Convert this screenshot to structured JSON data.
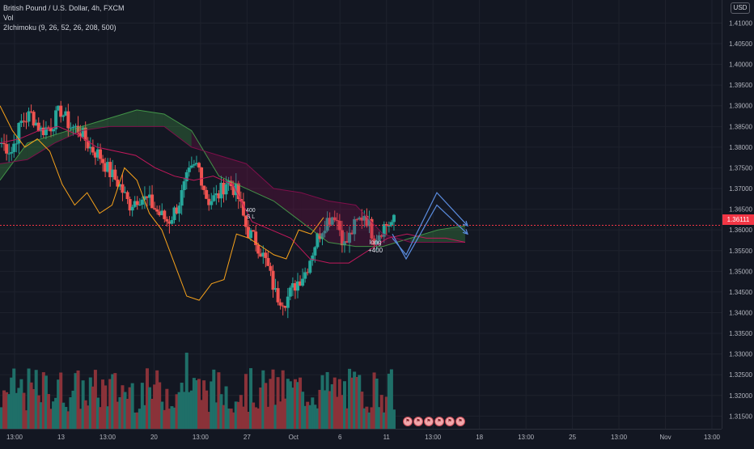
{
  "legend": {
    "symbol_line": "British Pound / U.S. Dollar, 4h, FXCM",
    "volume_line": "Vol",
    "ichimoku_line": "2Ichimoku (9, 26, 52, 26, 208, 500)"
  },
  "currency": "USD",
  "last_price": "1.36111",
  "trade_annotation": {
    "line1": "long",
    "line2": "+400"
  },
  "trade_annotation_small": {
    "line1": "400",
    "line2": "S L"
  },
  "event_icons": [
    "flag-icon",
    "flag-icon",
    "flag-icon",
    "flag-icon",
    "flag-icon",
    "flag-icon"
  ],
  "colors": {
    "up": "#26a69a",
    "down": "#ef5350",
    "vol_up": "#1f6f68",
    "vol_down": "#8a3239",
    "chikou": "#f7a21b",
    "kijun": "#c2185b",
    "cloud_bull": "#4caf50",
    "cloud_bear": "#880e4f",
    "projection": "#5b8de0",
    "last_price_line": "#f23645"
  },
  "chart_data": {
    "type": "candlestick",
    "title": "British Pound / U.S. Dollar, 4h, FXCM",
    "y_axis": {
      "range": [
        1.3135,
        1.414
      ],
      "ticks": [
        "1.41000",
        "1.40500",
        "1.40000",
        "1.39500",
        "1.39000",
        "1.38500",
        "1.38000",
        "1.37500",
        "1.37000",
        "1.36500",
        "1.36000",
        "1.35500",
        "1.35000",
        "1.34500",
        "1.34000",
        "1.33500",
        "1.33000",
        "1.32500",
        "1.32000",
        "1.31500"
      ]
    },
    "x_axis": {
      "ticks": [
        "13:00",
        "13",
        "13:00",
        "20",
        "13:00",
        "27",
        "Oct",
        "6",
        "11",
        "13:00",
        "18",
        "13:00",
        "25",
        "13:00",
        "Nov",
        "13:00"
      ]
    },
    "last_price": 1.36111,
    "close_path": [
      1.381,
      1.379,
      1.386,
      1.388,
      1.384,
      1.385,
      1.389,
      1.385,
      1.384,
      1.38,
      1.378,
      1.374,
      1.371,
      1.366,
      1.368,
      1.367,
      1.364,
      1.362,
      1.366,
      1.373,
      1.376,
      1.367,
      1.368,
      1.372,
      1.369,
      1.36,
      1.357,
      1.352,
      1.344,
      1.343,
      1.347,
      1.35,
      1.357,
      1.362,
      1.364,
      1.356,
      1.361,
      1.364,
      1.358,
      1.361,
      1.362
    ],
    "cloud": [
      {
        "a": 1.372,
        "b": 1.376
      },
      {
        "a": 1.381,
        "b": 1.377
      },
      {
        "a": 1.383,
        "b": 1.381
      },
      {
        "a": 1.385,
        "b": 1.384
      },
      {
        "a": 1.387,
        "b": 1.385
      },
      {
        "a": 1.389,
        "b": 1.385
      },
      {
        "a": 1.388,
        "b": 1.385
      },
      {
        "a": 1.384,
        "b": 1.38
      },
      {
        "a": 1.373,
        "b": 1.378
      },
      {
        "a": 1.37,
        "b": 1.376
      },
      {
        "a": 1.367,
        "b": 1.37
      },
      {
        "a": 1.362,
        "b": 1.369
      },
      {
        "a": 1.357,
        "b": 1.367
      },
      {
        "a": 1.356,
        "b": 1.366
      },
      {
        "a": 1.356,
        "b": 1.359
      },
      {
        "a": 1.358,
        "b": 1.357
      },
      {
        "a": 1.36,
        "b": 1.357
      },
      {
        "a": 1.361,
        "b": 1.357
      }
    ],
    "kijun": [
      1.381,
      1.382,
      1.384,
      1.385,
      1.383,
      1.38,
      1.379,
      1.378,
      1.375,
      1.373,
      1.372,
      1.373,
      1.371,
      1.362,
      1.36,
      1.358,
      1.353,
      1.352,
      1.352,
      1.355,
      1.358,
      1.359,
      1.358,
      1.358,
      1.357
    ],
    "chikou": [
      1.39,
      1.384,
      1.38,
      1.382,
      1.379,
      1.371,
      1.366,
      1.369,
      1.364,
      1.366,
      1.375,
      1.372,
      1.364,
      1.36,
      1.352,
      1.344,
      1.343,
      1.347,
      1.348,
      1.359,
      1.358,
      1.356,
      1.354,
      1.353,
      1.36,
      1.359,
      1.363
    ],
    "projection": [
      [
        1.358,
        1.354,
        1.369,
        1.361
      ],
      [
        1.359,
        1.353,
        1.366,
        1.359
      ]
    ],
    "grid": true,
    "legend_position": "top-left"
  }
}
